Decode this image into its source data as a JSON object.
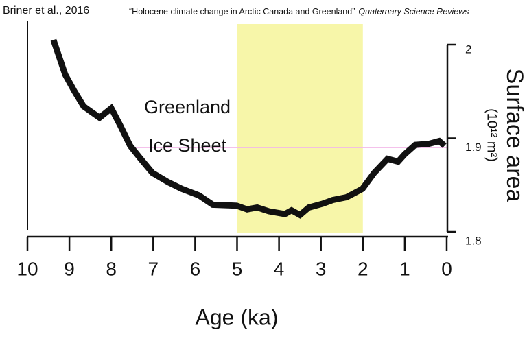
{
  "chart_data": {
    "type": "line",
    "source": "Briner et al., 2016",
    "title": "“Holocene climate change in Arctic Canada and Greenland”",
    "journal": "Quaternary Science Reviews",
    "annotation": [
      "Greenland",
      "Ice Sheet"
    ],
    "x_label": "Age (ka)",
    "y_label": "Surface area",
    "y_units": "(10¹² m²)",
    "x": [
      9.38,
      9.1,
      8.89,
      8.66,
      8.28,
      8.0,
      7.79,
      7.55,
      7.3,
      7.02,
      6.64,
      6.32,
      5.91,
      5.58,
      5.01,
      4.76,
      4.52,
      4.24,
      3.86,
      3.7,
      3.5,
      3.29,
      2.96,
      2.72,
      2.39,
      2.01,
      1.73,
      1.41,
      1.16,
      1.0,
      0.75,
      0.43,
      0.18,
      0.05
    ],
    "values": [
      2.005,
      1.968,
      1.951,
      1.934,
      1.922,
      1.932,
      1.914,
      1.892,
      1.878,
      1.863,
      1.853,
      1.846,
      1.839,
      1.829,
      1.828,
      1.824,
      1.826,
      1.822,
      1.819,
      1.823,
      1.818,
      1.826,
      1.83,
      1.834,
      1.837,
      1.846,
      1.863,
      1.878,
      1.875,
      1.883,
      1.893,
      1.894,
      1.897,
      1.892
    ],
    "color": "#111111",
    "xlim": [
      10,
      0
    ],
    "xticks": [
      10,
      9,
      8,
      7,
      6,
      5,
      4,
      3,
      2,
      1,
      0
    ],
    "ylim": [
      1.8,
      2
    ],
    "yticks": [
      1.8,
      1.9,
      2
    ],
    "highlight": {
      "x": [
        5,
        2
      ],
      "color": "#f7f6a9"
    },
    "reference_line": {
      "y": 1.89,
      "color": "#f2b8e8"
    }
  }
}
